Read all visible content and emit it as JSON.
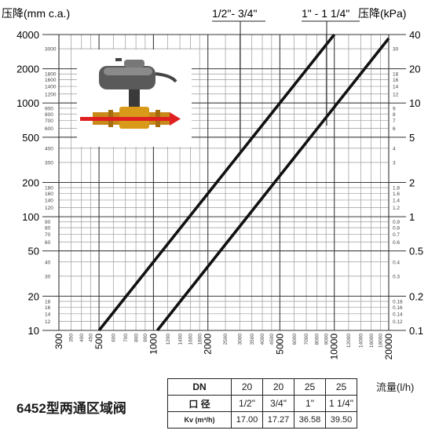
{
  "chart_data": {
    "type": "line",
    "x_scale": "log",
    "y_scale": "log",
    "grid": true,
    "xlim": [
      300,
      20000
    ],
    "ylim_left": [
      10,
      4000
    ],
    "ylim_right": [
      0.1,
      40
    ],
    "left_axis_label": "压降(mm c.a.)",
    "right_axis_label": "压降(kPa)",
    "x_axis_label": "流量(l/h)",
    "x_major_ticks": [
      "300",
      "500",
      "1000",
      "2000",
      "5000",
      "10000",
      "20000"
    ],
    "x_minor_ticks": [
      "350",
      "400",
      "450",
      "600",
      "700",
      "800",
      "900",
      "1200",
      "1400",
      "1600",
      "1800",
      "2500",
      "3000",
      "3500",
      "4000",
      "4500",
      "6000",
      "7000",
      "8000",
      "9000",
      "12000",
      "14000",
      "16000",
      "18000"
    ],
    "y_left_major_ticks": [
      "10",
      "20",
      "50",
      "100",
      "200",
      "500",
      "1000",
      "2000",
      "4000"
    ],
    "y_left_minor_ticks": [
      "12",
      "14",
      "16",
      "18",
      "30",
      "40",
      "60",
      "70",
      "80",
      "90",
      "120",
      "140",
      "160",
      "180",
      "300",
      "400",
      "600",
      "700",
      "800",
      "900",
      "1200",
      "1400",
      "1600",
      "1800",
      "3000"
    ],
    "y_right_major_ticks": [
      "0.1",
      "0.2",
      "0.5",
      "1",
      "2",
      "5",
      "10",
      "20",
      "40"
    ],
    "y_right_minor_ticks": [
      "0.12",
      "0.14",
      "0.16",
      "0.18",
      "0.3",
      "0.4",
      "0.6",
      "0.7",
      "0.8",
      "0.9",
      "1.2",
      "1.4",
      "1.6",
      "1.8",
      "3",
      "4",
      "6",
      "7",
      "8",
      "9",
      "12",
      "14",
      "16",
      "18",
      "30"
    ],
    "series": [
      {
        "name": "1/2\"- 3/4\"",
        "x": [
          500,
          10000
        ],
        "y": [
          10,
          4000
        ]
      },
      {
        "name": "1\" - 1 1/4\"",
        "x": [
          1050,
          20000
        ],
        "y": [
          10,
          3700
        ]
      }
    ]
  },
  "product_title": "6452型两通区域阀",
  "table": {
    "rows": [
      {
        "header": "DN",
        "values": [
          "20",
          "20",
          "25",
          "25"
        ]
      },
      {
        "header": "口  径",
        "values": [
          "1/2\"",
          "3/4\"",
          "1\"",
          "1 1/4\""
        ]
      },
      {
        "header": "Kv (m³/h)",
        "values": [
          "17.00",
          "17.27",
          "36.58",
          "39.50"
        ]
      }
    ]
  }
}
